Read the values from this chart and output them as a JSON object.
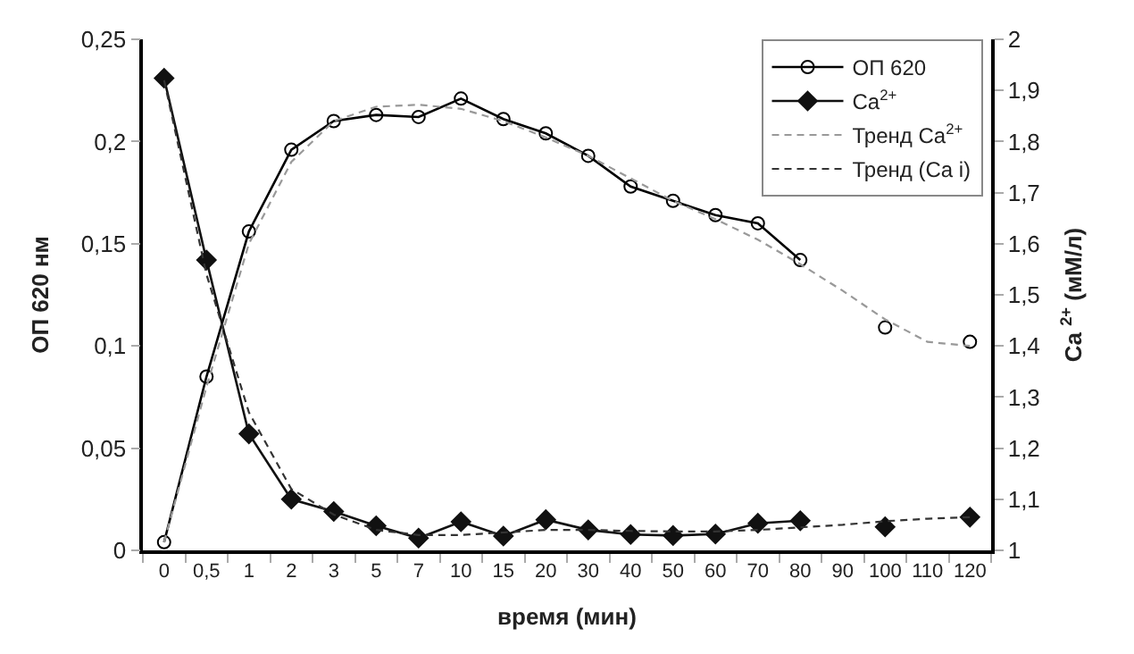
{
  "chart_data": {
    "type": "line",
    "xlabel": "время (мин)",
    "ylabel": "ОП 620 нм",
    "y2label": "Ca $^{2+}$ (мМ/л)",
    "categories": [
      "0",
      "0,5",
      "1",
      "2",
      "3",
      "5",
      "7",
      "10",
      "15",
      "20",
      "30",
      "40",
      "50",
      "60",
      "70",
      "80",
      "90",
      "100",
      "110",
      "120"
    ],
    "series": [
      {
        "name": "ОП 620",
        "color": "#000000",
        "marker": "circle",
        "line_style": "solid",
        "values": [
          0.004,
          0.085,
          0.156,
          0.196,
          0.21,
          0.213,
          0.212,
          0.221,
          0.211,
          0.204,
          0.193,
          0.178,
          0.171,
          0.164,
          0.16,
          0.142,
          null,
          0.109,
          null,
          0.102
        ]
      },
      {
        "name": "Ca$^{2+}$",
        "color": "#111111",
        "marker": "diamond",
        "line_style": "solid",
        "axis": "y2",
        "values": [
          1.924,
          1.568,
          1.228,
          1.1,
          1.076,
          1.048,
          1.024,
          1.056,
          1.028,
          1.06,
          1.04,
          1.031,
          1.029,
          1.032,
          1.053,
          1.058,
          null,
          1.046,
          null,
          1.065
        ]
      },
      {
        "name": "Тренд Ca$^{2+}$",
        "color": "#999999",
        "marker": "none",
        "line_style": "dashed",
        "values": [
          0.004,
          0.08,
          0.15,
          0.19,
          0.21,
          0.217,
          0.218,
          0.216,
          0.21,
          0.202,
          0.193,
          0.182,
          0.171,
          0.162,
          0.152,
          0.14,
          0.127,
          0.113,
          0.102,
          0.1
        ]
      },
      {
        "name": "Тренд (Ca i)",
        "color": "#333333",
        "marker": "none",
        "line_style": "dashed",
        "axis": "y2",
        "values": [
          1.92,
          1.54,
          1.27,
          1.12,
          1.07,
          1.04,
          1.03,
          1.03,
          1.035,
          1.04,
          1.04,
          1.038,
          1.037,
          1.037,
          1.04,
          1.045,
          1.05,
          1.057,
          1.062,
          1.065
        ]
      }
    ],
    "ylim": [
      0,
      0.25
    ],
    "yticks": [
      0,
      {
        "value": 0.05,
        "label": "0,05"
      },
      {
        "value": 0.1,
        "label": "0,1"
      },
      {
        "value": 0.15,
        "label": "0,15"
      },
      {
        "value": 0.2,
        "label": "0,2"
      },
      {
        "value": 0.25,
        "label": "0,25"
      }
    ],
    "y2lim": [
      1,
      2
    ],
    "y2ticks": [
      1,
      {
        "value": 1.1,
        "label": "1,1"
      },
      {
        "value": 1.2,
        "label": "1,2"
      },
      {
        "value": 1.3,
        "label": "1,3"
      },
      {
        "value": 1.4,
        "label": "1,4"
      },
      {
        "value": 1.5,
        "label": "1,5"
      },
      {
        "value": 1.6,
        "label": "1,6"
      },
      {
        "value": 1.7,
        "label": "1,7"
      },
      {
        "value": 1.8,
        "label": "1,8"
      },
      {
        "value": 1.9,
        "label": "1,9"
      },
      2
    ],
    "legend": "top right"
  }
}
